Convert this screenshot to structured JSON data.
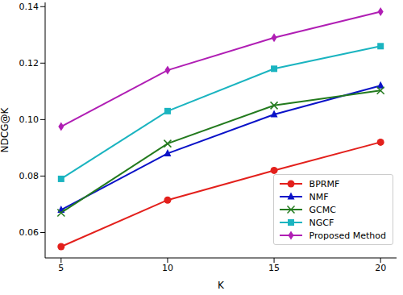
{
  "chart_data": {
    "type": "line",
    "x_label": "K",
    "y_label": "NDCG@K",
    "x": [
      5,
      10,
      15,
      20
    ],
    "xlim": [
      4.25,
      20.75
    ],
    "xticks": [
      5,
      10,
      15,
      20
    ],
    "ylim": [
      0.051,
      0.1415
    ],
    "yticks": [
      0.06,
      0.08,
      {
        "value": 0.1,
        "label": "0.10"
      },
      0.12,
      0.14
    ],
    "grid": false,
    "legend": "lower right",
    "series": [
      {
        "name": "BPRMF",
        "color": "#e3201c",
        "marker": "circle",
        "values": [
          0.055,
          0.0715,
          0.082,
          0.092
        ]
      },
      {
        "name": "NMF",
        "color": "#0a12c8",
        "marker": "triangle",
        "values": [
          0.068,
          0.088,
          0.1018,
          0.112
        ]
      },
      {
        "name": "GCMC",
        "color": "#237a1e",
        "marker": "x",
        "values": [
          0.067,
          0.0915,
          0.105,
          0.1103
        ]
      },
      {
        "name": "NGCF",
        "color": "#1ab4c0",
        "marker": "square",
        "values": [
          0.079,
          0.103,
          0.118,
          0.126
        ]
      },
      {
        "name": "Proposed Method",
        "color": "#b01eb4",
        "marker": "diamond",
        "values": [
          0.0975,
          0.1175,
          0.129,
          0.1382
        ]
      }
    ]
  }
}
